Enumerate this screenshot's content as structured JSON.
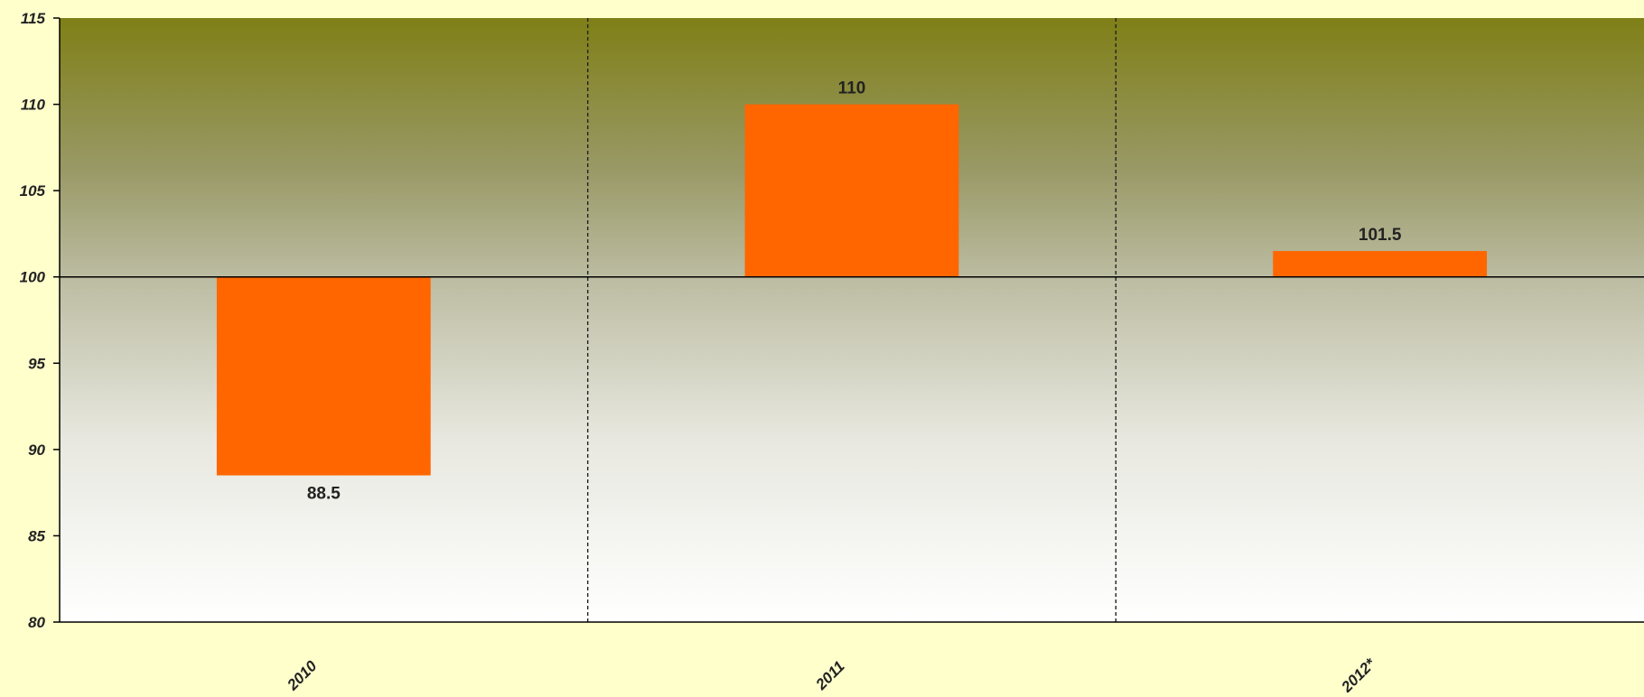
{
  "chart_data": {
    "type": "bar",
    "baseline": 100,
    "categories": [
      "2010",
      "2011",
      "2012*"
    ],
    "values": [
      88.5,
      110,
      101.5
    ],
    "value_labels": [
      "88.5",
      "110",
      "101.5"
    ],
    "title": "",
    "xlabel": "",
    "ylabel": "",
    "ylim": [
      80,
      115
    ],
    "yticks": [
      80,
      85,
      90,
      95,
      100,
      105,
      110,
      115
    ],
    "grid": "vertical dashed separators between categories",
    "legend": "none",
    "colors": {
      "bar": "#ff6600",
      "page_background": "#ffffcc",
      "plot_top": "#7f7f17",
      "plot_bottom": "#ffffff",
      "axis": "#000000"
    }
  }
}
